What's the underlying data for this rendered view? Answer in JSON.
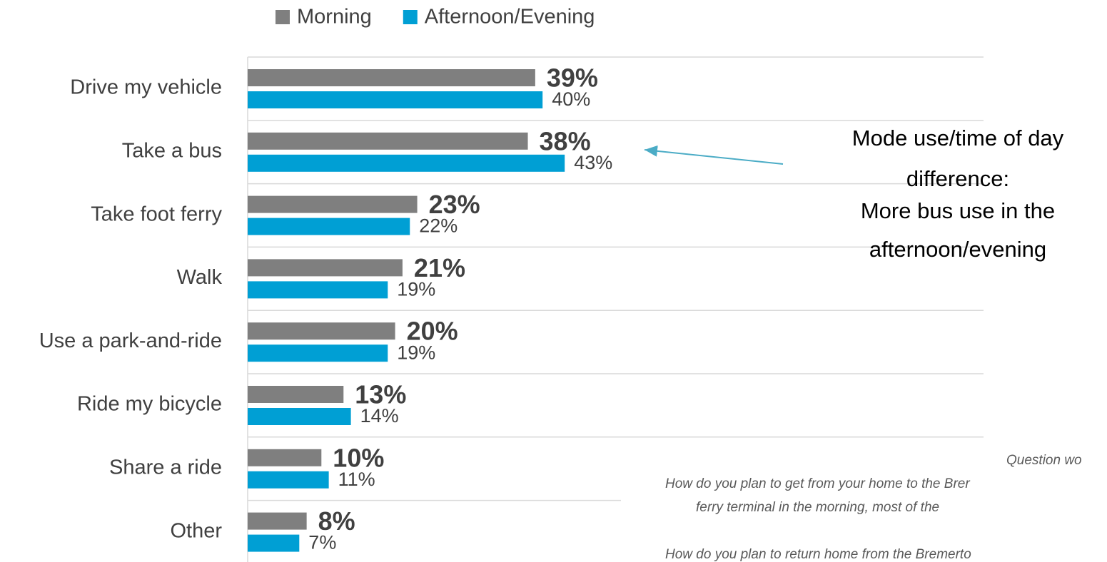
{
  "chart_data": {
    "type": "bar",
    "orientation": "horizontal",
    "categories": [
      "Drive my vehicle",
      "Take a bus",
      "Take foot ferry",
      "Walk",
      "Use a park-and-ride",
      "Ride my bicycle",
      "Share a ride",
      "Other"
    ],
    "series": [
      {
        "name": "Morning",
        "color": "#7f7f7f",
        "values": [
          39,
          38,
          23,
          21,
          20,
          13,
          10,
          8
        ],
        "value_labels": [
          "39%",
          "38%",
          "23%",
          "21%",
          "20%",
          "13%",
          "10%",
          "8%"
        ]
      },
      {
        "name": "Afternoon/Evening",
        "color": "#009fd4",
        "values": [
          40,
          43,
          22,
          19,
          19,
          14,
          11,
          7
        ],
        "value_labels": [
          "40%",
          "43%",
          "22%",
          "19%",
          "19%",
          "14%",
          "11%",
          "7%"
        ]
      }
    ],
    "xlim": [
      0,
      100
    ],
    "legend": "top",
    "annotation": [
      "Mode use/time of day",
      "difference:",
      "More bus use in the",
      "afternoon/evening"
    ],
    "note": [
      "Question wo",
      "How do you plan to get from your home to the Brer",
      "ferry terminal in the morning, most of the",
      "How do you plan to return home from the Bremerto"
    ]
  }
}
